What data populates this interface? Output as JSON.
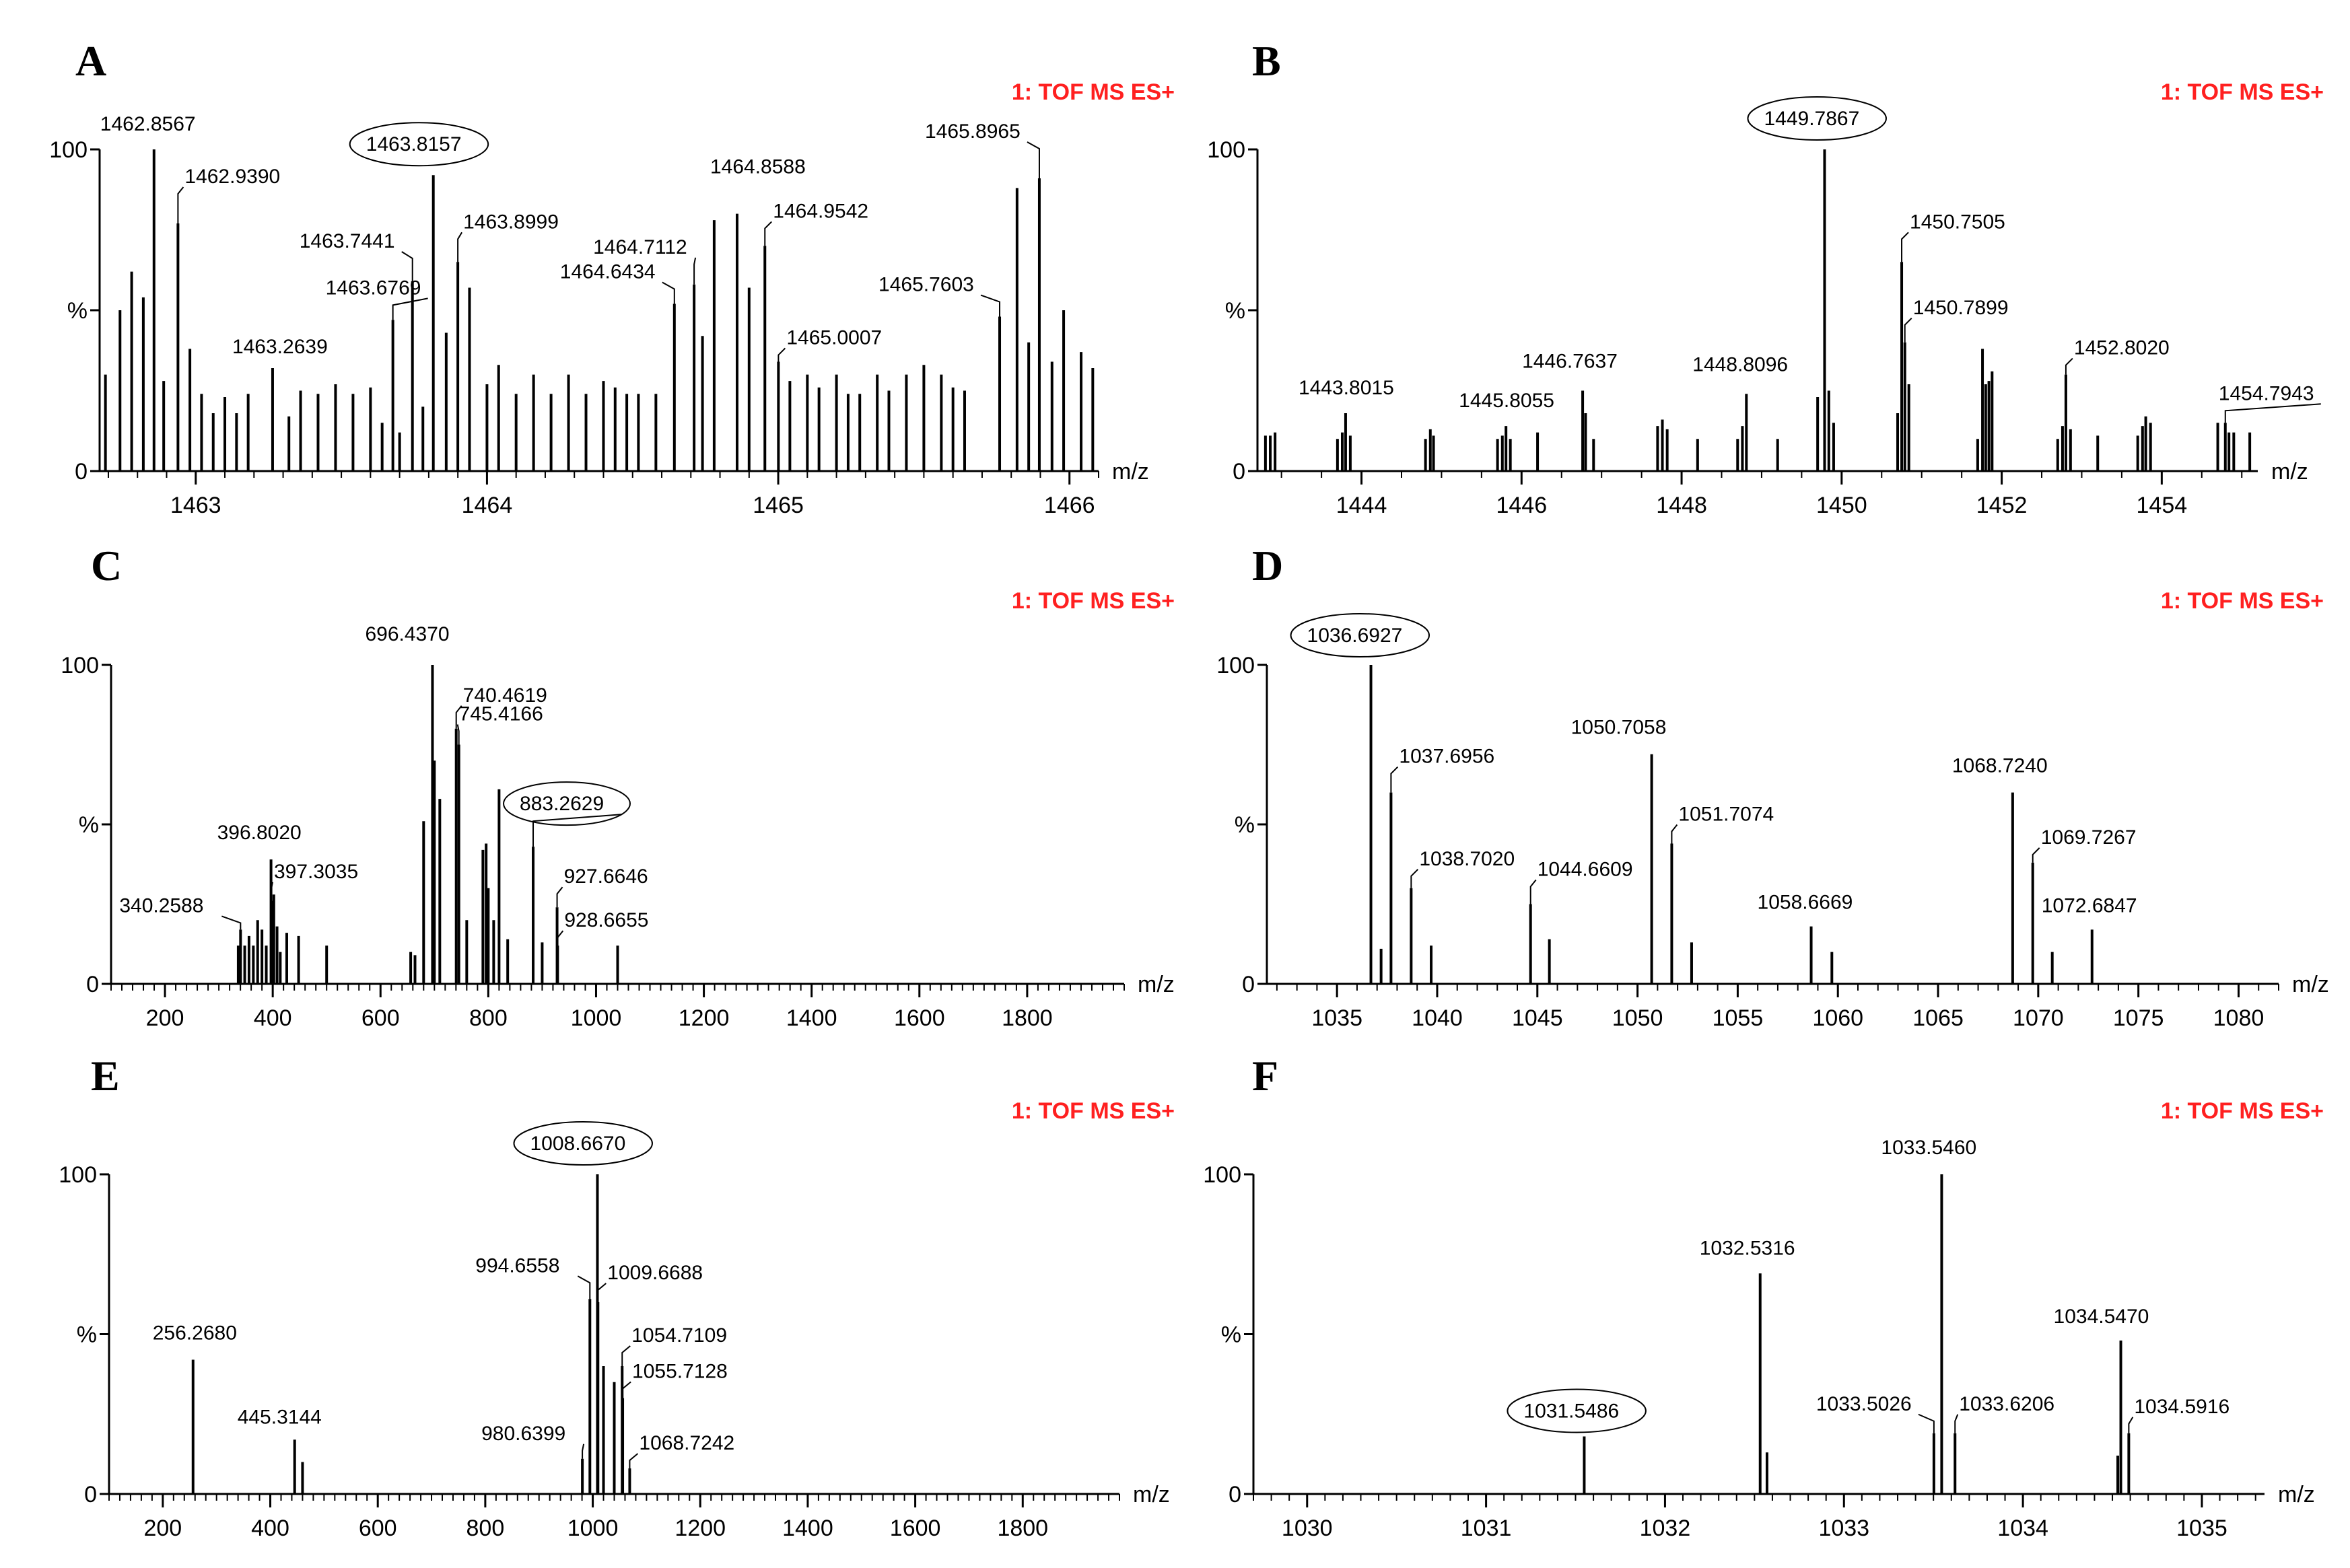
{
  "instrument_label": "1: TOF MS ES+",
  "x_unit": "m/z",
  "y_ticks": [
    "0",
    "%",
    "100"
  ],
  "chart_data": [
    {
      "panel": "A",
      "type": "bar",
      "instrument": "1: TOF MS ES+",
      "xlabel": "m/z",
      "ylabel": "%",
      "xlim": [
        1462.67,
        1466.1
      ],
      "ylim": [
        0,
        100
      ],
      "xticks": [
        1463,
        1464,
        1465,
        1466
      ],
      "circled": "1463.8157",
      "peaks": [
        [
          1462.69,
          30
        ],
        [
          1462.74,
          50
        ],
        [
          1462.78,
          62
        ],
        [
          1462.82,
          54
        ],
        [
          1462.8567,
          100
        ],
        [
          1462.89,
          28
        ],
        [
          1462.939,
          77
        ],
        [
          1462.98,
          38
        ],
        [
          1463.02,
          24
        ],
        [
          1463.06,
          18
        ],
        [
          1463.1,
          23
        ],
        [
          1463.14,
          18
        ],
        [
          1463.18,
          24
        ],
        [
          1463.2639,
          32
        ],
        [
          1463.32,
          17
        ],
        [
          1463.36,
          25
        ],
        [
          1463.42,
          24
        ],
        [
          1463.48,
          27
        ],
        [
          1463.54,
          24
        ],
        [
          1463.6,
          26
        ],
        [
          1463.64,
          15
        ],
        [
          1463.6769,
          47
        ],
        [
          1463.7,
          12
        ],
        [
          1463.7441,
          59
        ],
        [
          1463.78,
          20
        ],
        [
          1463.8157,
          92
        ],
        [
          1463.86,
          43
        ],
        [
          1463.8999,
          65
        ],
        [
          1463.94,
          57
        ],
        [
          1464.0,
          27
        ],
        [
          1464.04,
          33
        ],
        [
          1464.1,
          24
        ],
        [
          1464.16,
          30
        ],
        [
          1464.22,
          24
        ],
        [
          1464.28,
          30
        ],
        [
          1464.34,
          24
        ],
        [
          1464.4,
          28
        ],
        [
          1464.44,
          26
        ],
        [
          1464.48,
          24
        ],
        [
          1464.52,
          24
        ],
        [
          1464.58,
          24
        ],
        [
          1464.6434,
          52
        ],
        [
          1464.7112,
          58
        ],
        [
          1464.74,
          42
        ],
        [
          1464.78,
          78
        ],
        [
          1464.8588,
          80
        ],
        [
          1464.9,
          57
        ],
        [
          1464.9542,
          70
        ],
        [
          1465.0007,
          34
        ],
        [
          1465.04,
          28
        ],
        [
          1465.1,
          30
        ],
        [
          1465.14,
          26
        ],
        [
          1465.2,
          30
        ],
        [
          1465.24,
          24
        ],
        [
          1465.28,
          24
        ],
        [
          1465.34,
          30
        ],
        [
          1465.38,
          25
        ],
        [
          1465.44,
          30
        ],
        [
          1465.5,
          33
        ],
        [
          1465.56,
          30
        ],
        [
          1465.6,
          26
        ],
        [
          1465.64,
          25
        ],
        [
          1465.7603,
          48
        ],
        [
          1465.82,
          88
        ],
        [
          1465.86,
          40
        ],
        [
          1465.8965,
          91
        ],
        [
          1465.94,
          34
        ],
        [
          1465.98,
          50
        ],
        [
          1466.04,
          37
        ],
        [
          1466.08,
          32
        ]
      ],
      "labels": [
        {
          "text": "1462.8567",
          "mz": 1462.8567,
          "leader": false
        },
        {
          "text": "1462.9390",
          "mz": 1462.939,
          "leader": true
        },
        {
          "text": "1463.2639",
          "mz": 1463.2639,
          "leader": false
        },
        {
          "text": "1463.6769",
          "mz": 1463.6769,
          "leader": true
        },
        {
          "text": "1463.7441",
          "mz": 1463.7441,
          "leader": true
        },
        {
          "text": "1463.8157",
          "mz": 1463.8157,
          "leader": false
        },
        {
          "text": "1463.8999",
          "mz": 1463.8999,
          "leader": true
        },
        {
          "text": "1464.6434",
          "mz": 1464.6434,
          "leader": true
        },
        {
          "text": "1464.7112",
          "mz": 1464.7112,
          "leader": true
        },
        {
          "text": "1464.8588",
          "mz": 1464.8588,
          "leader": false
        },
        {
          "text": "1464.9542",
          "mz": 1464.9542,
          "leader": true
        },
        {
          "text": "1465.0007",
          "mz": 1465.0007,
          "leader": true
        },
        {
          "text": "1465.7603",
          "mz": 1465.7603,
          "leader": true
        },
        {
          "text": "1465.8965",
          "mz": 1465.8965,
          "leader": true
        }
      ]
    },
    {
      "panel": "B",
      "type": "bar",
      "instrument": "1: TOF MS ES+",
      "xlabel": "m/z",
      "ylabel": "%",
      "xlim": [
        1442.7,
        1455.2
      ],
      "ylim": [
        0,
        100
      ],
      "xticks": [
        1444,
        1446,
        1448,
        1450,
        1452,
        1454
      ],
      "circled": "1449.7867",
      "peaks": [
        [
          1442.8,
          11
        ],
        [
          1442.86,
          11
        ],
        [
          1442.92,
          12
        ],
        [
          1443.7,
          10
        ],
        [
          1443.76,
          12
        ],
        [
          1443.8015,
          18
        ],
        [
          1443.86,
          11
        ],
        [
          1444.8,
          10
        ],
        [
          1444.86,
          13
        ],
        [
          1444.9,
          11
        ],
        [
          1445.7,
          10
        ],
        [
          1445.76,
          11
        ],
        [
          1445.8055,
          14
        ],
        [
          1445.86,
          10
        ],
        [
          1446.2,
          12
        ],
        [
          1446.7637,
          25
        ],
        [
          1446.8,
          18
        ],
        [
          1446.9,
          10
        ],
        [
          1447.7,
          14
        ],
        [
          1447.76,
          16
        ],
        [
          1447.82,
          13
        ],
        [
          1448.2,
          10
        ],
        [
          1448.7,
          10
        ],
        [
          1448.76,
          14
        ],
        [
          1448.8096,
          24
        ],
        [
          1449.2,
          10
        ],
        [
          1449.7,
          23
        ],
        [
          1449.7867,
          100
        ],
        [
          1449.84,
          25
        ],
        [
          1449.9,
          15
        ],
        [
          1450.7,
          18
        ],
        [
          1450.7505,
          65
        ],
        [
          1450.7899,
          40
        ],
        [
          1450.84,
          27
        ],
        [
          1451.7,
          10
        ],
        [
          1451.76,
          38
        ],
        [
          1451.8,
          27
        ],
        [
          1451.84,
          28
        ],
        [
          1451.88,
          31
        ],
        [
          1452.7,
          10
        ],
        [
          1452.76,
          14
        ],
        [
          1452.802,
          30
        ],
        [
          1452.86,
          13
        ],
        [
          1453.2,
          11
        ],
        [
          1453.7,
          11
        ],
        [
          1453.76,
          14
        ],
        [
          1453.8,
          17
        ],
        [
          1453.86,
          15
        ],
        [
          1454.7,
          15
        ],
        [
          1454.7943,
          15
        ],
        [
          1454.84,
          12
        ],
        [
          1454.9,
          12
        ],
        [
          1455.1,
          12
        ]
      ],
      "labels": [
        {
          "text": "1443.8015",
          "mz": 1443.8015,
          "leader": false
        },
        {
          "text": "1445.8055",
          "mz": 1445.8055,
          "leader": false
        },
        {
          "text": "1446.7637",
          "mz": 1446.7637,
          "leader": false
        },
        {
          "text": "1448.8096",
          "mz": 1448.8096,
          "leader": false
        },
        {
          "text": "1449.7867",
          "mz": 1449.7867,
          "leader": false
        },
        {
          "text": "1450.7505",
          "mz": 1450.7505,
          "leader": true
        },
        {
          "text": "1450.7899",
          "mz": 1450.7899,
          "leader": true
        },
        {
          "text": "1452.8020",
          "mz": 1452.802,
          "leader": true
        },
        {
          "text": "1454.7943",
          "mz": 1454.7943,
          "leader": true
        }
      ]
    },
    {
      "panel": "C",
      "type": "bar",
      "instrument": "1: TOF MS ES+",
      "xlabel": "m/z",
      "ylabel": "%",
      "xlim": [
        100,
        1980
      ],
      "ylim": [
        0,
        100
      ],
      "xticks": [
        200,
        400,
        600,
        800,
        1000,
        1200,
        1400,
        1600,
        1800
      ],
      "circled": "883.2629",
      "peaks": [
        [
          336,
          12
        ],
        [
          340.2588,
          17
        ],
        [
          348,
          12
        ],
        [
          356,
          15
        ],
        [
          364,
          12
        ],
        [
          372,
          20
        ],
        [
          380,
          17
        ],
        [
          388,
          12
        ],
        [
          396.802,
          39
        ],
        [
          397.3035,
          26
        ],
        [
          402,
          28
        ],
        [
          408,
          18
        ],
        [
          414,
          10
        ],
        [
          426,
          16
        ],
        [
          448,
          15
        ],
        [
          500,
          12
        ],
        [
          656,
          10
        ],
        [
          664,
          9
        ],
        [
          680,
          51
        ],
        [
          696.437,
          100
        ],
        [
          700,
          70
        ],
        [
          710,
          58
        ],
        [
          740.4619,
          80
        ],
        [
          745.4166,
          75
        ],
        [
          760,
          20
        ],
        [
          790,
          42
        ],
        [
          796,
          44
        ],
        [
          800,
          30
        ],
        [
          810,
          20
        ],
        [
          820,
          61
        ],
        [
          836,
          14
        ],
        [
          883.2629,
          43
        ],
        [
          900,
          13
        ],
        [
          927.6646,
          24
        ],
        [
          928.6655,
          12
        ],
        [
          1040,
          12
        ]
      ],
      "labels": [
        {
          "text": "340.2588",
          "mz": 340.2588,
          "leader": true
        },
        {
          "text": "396.8020",
          "mz": 396.802,
          "leader": false
        },
        {
          "text": "397.3035",
          "mz": 397.3035,
          "leader": true
        },
        {
          "text": "696.4370",
          "mz": 696.437,
          "leader": false
        },
        {
          "text": "740.4619",
          "mz": 740.4619,
          "leader": true
        },
        {
          "text": "745.4166",
          "mz": 745.4166,
          "leader": true
        },
        {
          "text": "883.2629",
          "mz": 883.2629,
          "leader": true
        },
        {
          "text": "927.6646",
          "mz": 927.6646,
          "leader": true
        },
        {
          "text": "928.6655",
          "mz": 928.6655,
          "leader": true
        }
      ]
    },
    {
      "panel": "D",
      "type": "bar",
      "instrument": "1: TOF MS ES+",
      "xlabel": "m/z",
      "ylabel": "%",
      "xlim": [
        1031.5,
        1082
      ],
      "ylim": [
        0,
        100
      ],
      "xticks": [
        1035,
        1040,
        1045,
        1050,
        1055,
        1060,
        1065,
        1070,
        1075,
        1080
      ],
      "circled": "1036.6927",
      "peaks": [
        [
          1036.6927,
          100
        ],
        [
          1037.2,
          11
        ],
        [
          1037.6956,
          60
        ],
        [
          1038.702,
          30
        ],
        [
          1039.7,
          12
        ],
        [
          1044.6609,
          25
        ],
        [
          1045.6,
          14
        ],
        [
          1050.7058,
          72
        ],
        [
          1051.7074,
          44
        ],
        [
          1052.7,
          13
        ],
        [
          1058.6669,
          18
        ],
        [
          1059.7,
          10
        ],
        [
          1068.724,
          60
        ],
        [
          1069.7267,
          38
        ],
        [
          1070.7,
          10
        ],
        [
          1072.6847,
          17
        ]
      ],
      "labels": [
        {
          "text": "1036.6927",
          "mz": 1036.6927,
          "leader": false
        },
        {
          "text": "1037.6956",
          "mz": 1037.6956,
          "leader": true
        },
        {
          "text": "1038.7020",
          "mz": 1038.702,
          "leader": true
        },
        {
          "text": "1044.6609",
          "mz": 1044.6609,
          "leader": true
        },
        {
          "text": "1050.7058",
          "mz": 1050.7058,
          "leader": false
        },
        {
          "text": "1051.7074",
          "mz": 1051.7074,
          "leader": true
        },
        {
          "text": "1058.6669",
          "mz": 1058.6669,
          "leader": false
        },
        {
          "text": "1068.7240",
          "mz": 1068.724,
          "leader": false
        },
        {
          "text": "1069.7267",
          "mz": 1069.7267,
          "leader": true
        },
        {
          "text": "1072.6847",
          "mz": 1072.6847,
          "leader": false
        }
      ]
    },
    {
      "panel": "E",
      "type": "bar",
      "instrument": "1: TOF MS ES+",
      "xlabel": "m/z",
      "ylabel": "%",
      "xlim": [
        100,
        1980
      ],
      "ylim": [
        0,
        100
      ],
      "xticks": [
        200,
        400,
        600,
        800,
        1000,
        1200,
        1400,
        1600,
        1800
      ],
      "circled": "1008.6670",
      "peaks": [
        [
          256.268,
          42
        ],
        [
          445.3144,
          17
        ],
        [
          460,
          10
        ],
        [
          980.6399,
          11
        ],
        [
          994.6558,
          61
        ],
        [
          1008.667,
          100
        ],
        [
          1009.6688,
          60
        ],
        [
          1020,
          40
        ],
        [
          1040,
          35
        ],
        [
          1054.7109,
          40
        ],
        [
          1055.7128,
          30
        ],
        [
          1068.7242,
          8
        ]
      ],
      "labels": [
        {
          "text": "256.2680",
          "mz": 256.268,
          "leader": false
        },
        {
          "text": "445.3144",
          "mz": 445.3144,
          "leader": false
        },
        {
          "text": "980.6399",
          "mz": 980.6399,
          "leader": true
        },
        {
          "text": "994.6558",
          "mz": 994.6558,
          "leader": true
        },
        {
          "text": "1008.6670",
          "mz": 1008.667,
          "leader": false
        },
        {
          "text": "1009.6688",
          "mz": 1009.6688,
          "leader": true
        },
        {
          "text": "1054.7109",
          "mz": 1054.7109,
          "leader": true
        },
        {
          "text": "1055.7128",
          "mz": 1055.7128,
          "leader": true
        },
        {
          "text": "1068.7242",
          "mz": 1068.7242,
          "leader": true
        }
      ]
    },
    {
      "panel": "F",
      "type": "bar",
      "instrument": "1: TOF MS ES+",
      "xlabel": "m/z",
      "ylabel": "%",
      "xlim": [
        1029.7,
        1035.35
      ],
      "ylim": [
        0,
        100
      ],
      "xticks": [
        1030,
        1031,
        1032,
        1033,
        1034,
        1035
      ],
      "circled": "1031.5486",
      "peaks": [
        [
          1031.5486,
          18
        ],
        [
          1032.5316,
          69
        ],
        [
          1032.57,
          13
        ],
        [
          1033.5026,
          19
        ],
        [
          1033.546,
          100
        ],
        [
          1033.6206,
          19
        ],
        [
          1034.53,
          12
        ],
        [
          1034.547,
          48
        ],
        [
          1034.5916,
          19
        ]
      ],
      "labels": [
        {
          "text": "1031.5486",
          "mz": 1031.5486,
          "leader": false
        },
        {
          "text": "1032.5316",
          "mz": 1032.5316,
          "leader": false
        },
        {
          "text": "1033.5460",
          "mz": 1033.546,
          "leader": false
        },
        {
          "text": "1033.5026",
          "mz": 1033.5026,
          "leader": true
        },
        {
          "text": "1033.6206",
          "mz": 1033.6206,
          "leader": true
        },
        {
          "text": "1034.5470",
          "mz": 1034.547,
          "leader": false
        },
        {
          "text": "1034.5916",
          "mz": 1034.5916,
          "leader": true
        }
      ]
    }
  ]
}
